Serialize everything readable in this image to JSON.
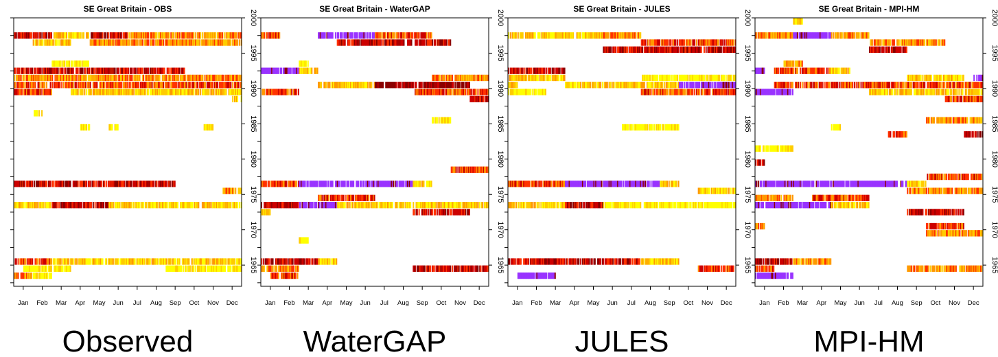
{
  "colors": {
    "level1": "#ffff00",
    "level2": "#ffcc00",
    "level3": "#ff9900",
    "level4": "#ff3300",
    "level5": "#cc0000",
    "level6": "#8b0000",
    "level7": "#9933ff"
  },
  "chart_data": [
    {
      "type": "heatmap",
      "title": "SE Great Britain  - OBS",
      "caption": "Observed",
      "xlabel": "",
      "ylabel": "",
      "x_ticks": [
        "Jan",
        "Feb",
        "Mar",
        "Apr",
        "May",
        "Jun",
        "Jul",
        "Aug",
        "Sep",
        "Oct",
        "Nov",
        "Dec"
      ],
      "y_ticks": [
        1965,
        1970,
        1975,
        1980,
        1985,
        1990,
        1995,
        2000
      ],
      "ylim": [
        1962,
        2000
      ],
      "series": [
        {
          "year": 1997,
          "segments": [
            [
              0,
              2,
              5
            ],
            [
              2,
              4,
              2
            ],
            [
              4,
              6,
              5
            ],
            [
              6,
              12,
              3
            ]
          ]
        },
        {
          "year": 1996,
          "segments": [
            [
              1,
              3,
              2
            ],
            [
              4,
              12,
              3
            ]
          ]
        },
        {
          "year": 1993,
          "segments": [
            [
              2,
              4,
              1
            ]
          ]
        },
        {
          "year": 1992,
          "segments": [
            [
              0,
              9,
              5
            ]
          ]
        },
        {
          "year": 1991,
          "segments": [
            [
              0,
              12,
              3
            ]
          ]
        },
        {
          "year": 1990,
          "segments": [
            [
              0,
              12,
              4
            ]
          ]
        },
        {
          "year": 1989,
          "segments": [
            [
              0,
              2,
              4
            ],
            [
              3,
              12,
              2
            ]
          ]
        },
        {
          "year": 1988,
          "segments": [
            [
              11.5,
              12,
              2
            ]
          ]
        },
        {
          "year": 1986,
          "segments": [
            [
              1,
              1.5,
              1
            ]
          ]
        },
        {
          "year": 1984,
          "segments": [
            [
              3.5,
              4,
              1
            ],
            [
              5,
              5.5,
              1
            ],
            [
              10,
              10.5,
              1
            ]
          ]
        },
        {
          "year": 1976,
          "segments": [
            [
              0,
              8.5,
              5
            ]
          ]
        },
        {
          "year": 1975,
          "segments": [
            [
              11,
              12,
              3
            ]
          ]
        },
        {
          "year": 1973,
          "segments": [
            [
              0,
              2,
              2
            ],
            [
              2,
              5,
              5
            ],
            [
              5,
              12,
              2
            ]
          ]
        },
        {
          "year": 1965,
          "segments": [
            [
              0,
              2,
              4
            ],
            [
              2,
              12,
              2
            ]
          ]
        },
        {
          "year": 1964,
          "segments": [
            [
              0.5,
              3,
              1
            ],
            [
              8,
              12,
              1
            ]
          ]
        },
        {
          "year": 1963,
          "segments": [
            [
              0,
              1,
              3
            ],
            [
              1,
              2,
              1
            ]
          ]
        }
      ]
    },
    {
      "type": "heatmap",
      "title": "SE Great Britain  - WaterGAP",
      "caption": "WaterGAP",
      "xlabel": "",
      "ylabel": "",
      "x_ticks": [
        "Jan",
        "Feb",
        "Mar",
        "Apr",
        "May",
        "Jun",
        "Jul",
        "Aug",
        "Sep",
        "Oct",
        "Nov",
        "Dec"
      ],
      "y_ticks": [
        1965,
        1970,
        1975,
        1980,
        1985,
        1990,
        1995,
        2000
      ],
      "ylim": [
        1962,
        2000
      ],
      "series": [
        {
          "year": 1997,
          "segments": [
            [
              0,
              1,
              4
            ],
            [
              3,
              6,
              7
            ],
            [
              6,
              9,
              4
            ]
          ]
        },
        {
          "year": 1996,
          "segments": [
            [
              4,
              10,
              5
            ]
          ]
        },
        {
          "year": 1993,
          "segments": [
            [
              2,
              2.5,
              1
            ]
          ]
        },
        {
          "year": 1992,
          "segments": [
            [
              0,
              2,
              7
            ],
            [
              2,
              3,
              2
            ]
          ]
        },
        {
          "year": 1991,
          "segments": [
            [
              9,
              12,
              3
            ]
          ]
        },
        {
          "year": 1990,
          "segments": [
            [
              3,
              6,
              2
            ],
            [
              6,
              11,
              6
            ]
          ]
        },
        {
          "year": 1989,
          "segments": [
            [
              0,
              2,
              4
            ],
            [
              8,
              12,
              4
            ]
          ]
        },
        {
          "year": 1988,
          "segments": [
            [
              11,
              12,
              5
            ]
          ]
        },
        {
          "year": 1985,
          "segments": [
            [
              9,
              10,
              1
            ]
          ]
        },
        {
          "year": 1978,
          "segments": [
            [
              10,
              12,
              4
            ]
          ]
        },
        {
          "year": 1976,
          "segments": [
            [
              0,
              2,
              4
            ],
            [
              2,
              8,
              7
            ],
            [
              8,
              9,
              2
            ]
          ]
        },
        {
          "year": 1974,
          "segments": [
            [
              3,
              6,
              4
            ]
          ]
        },
        {
          "year": 1973,
          "segments": [
            [
              0,
              2,
              5
            ],
            [
              2,
              4,
              7
            ],
            [
              4,
              12,
              2
            ]
          ]
        },
        {
          "year": 1972,
          "segments": [
            [
              0,
              0.5,
              2
            ],
            [
              8,
              11,
              5
            ]
          ]
        },
        {
          "year": 1968,
          "segments": [
            [
              2,
              2.5,
              1
            ]
          ]
        },
        {
          "year": 1965,
          "segments": [
            [
              0,
              3,
              5
            ],
            [
              3,
              4,
              2
            ]
          ]
        },
        {
          "year": 1964,
          "segments": [
            [
              0,
              2,
              3
            ],
            [
              8,
              12,
              5
            ]
          ]
        },
        {
          "year": 1963,
          "segments": [
            [
              0.5,
              2,
              4
            ]
          ]
        }
      ]
    },
    {
      "type": "heatmap",
      "title": "SE Great Britain  - JULES",
      "caption": "JULES",
      "xlabel": "",
      "ylabel": "",
      "x_ticks": [
        "Jan",
        "Feb",
        "Mar",
        "Apr",
        "May",
        "Jun",
        "Jul",
        "Aug",
        "Sep",
        "Oct",
        "Nov",
        "Dec"
      ],
      "y_ticks": [
        1965,
        1970,
        1975,
        1980,
        1985,
        1990,
        1995,
        2000
      ],
      "ylim": [
        1962,
        2000
      ],
      "series": [
        {
          "year": 1997,
          "segments": [
            [
              0,
              5,
              2
            ],
            [
              5,
              7,
              3
            ]
          ]
        },
        {
          "year": 1996,
          "segments": [
            [
              7,
              12,
              4
            ]
          ]
        },
        {
          "year": 1995,
          "segments": [
            [
              5,
              12,
              5
            ]
          ]
        },
        {
          "year": 1992,
          "segments": [
            [
              0,
              3,
              5
            ]
          ]
        },
        {
          "year": 1991,
          "segments": [
            [
              0,
              3,
              2
            ],
            [
              7,
              12,
              1
            ]
          ]
        },
        {
          "year": 1990,
          "segments": [
            [
              0,
              0.5,
              2
            ],
            [
              3,
              9,
              2
            ],
            [
              9,
              12,
              7
            ]
          ]
        },
        {
          "year": 1989,
          "segments": [
            [
              0,
              2,
              1
            ],
            [
              7,
              12,
              4
            ]
          ]
        },
        {
          "year": 1984,
          "segments": [
            [
              6,
              9,
              1
            ]
          ]
        },
        {
          "year": 1976,
          "segments": [
            [
              0,
              3,
              4
            ],
            [
              3,
              8,
              7
            ],
            [
              8,
              9,
              2
            ]
          ]
        },
        {
          "year": 1975,
          "segments": [
            [
              10,
              12,
              2
            ]
          ]
        },
        {
          "year": 1973,
          "segments": [
            [
              0,
              3,
              2
            ],
            [
              3,
              5,
              5
            ],
            [
              5,
              12,
              1
            ]
          ]
        },
        {
          "year": 1965,
          "segments": [
            [
              0,
              7,
              5
            ],
            [
              7,
              9,
              2
            ]
          ]
        },
        {
          "year": 1964,
          "segments": [
            [
              10,
              12,
              4
            ]
          ]
        },
        {
          "year": 1963,
          "segments": [
            [
              0.5,
              2.5,
              7
            ]
          ]
        }
      ]
    },
    {
      "type": "heatmap",
      "title": "SE Great Britain  - MPI-HM",
      "caption": "MPI-HM",
      "xlabel": "",
      "ylabel": "",
      "x_ticks": [
        "Jan",
        "Feb",
        "Mar",
        "Apr",
        "May",
        "Jun",
        "Jul",
        "Aug",
        "Sep",
        "Oct",
        "Nov",
        "Dec"
      ],
      "y_ticks": [
        1965,
        1970,
        1975,
        1980,
        1985,
        1990,
        1995,
        2000
      ],
      "ylim": [
        1962,
        2000
      ],
      "series": [
        {
          "year": 1999,
          "segments": [
            [
              2,
              2.5,
              2
            ]
          ]
        },
        {
          "year": 1997,
          "segments": [
            [
              0,
              2,
              3
            ],
            [
              2,
              4,
              7
            ],
            [
              4,
              6,
              3
            ]
          ]
        },
        {
          "year": 1996,
          "segments": [
            [
              6,
              10,
              3
            ]
          ]
        },
        {
          "year": 1995,
          "segments": [
            [
              6,
              8,
              5
            ]
          ]
        },
        {
          "year": 1993,
          "segments": [
            [
              1.5,
              2.5,
              3
            ]
          ]
        },
        {
          "year": 1992,
          "segments": [
            [
              0,
              0.5,
              7
            ],
            [
              1,
              4,
              4
            ],
            [
              4,
              5,
              2
            ]
          ]
        },
        {
          "year": 1991,
          "segments": [
            [
              8,
              11,
              2
            ],
            [
              11.5,
              12,
              7
            ]
          ]
        },
        {
          "year": 1990,
          "segments": [
            [
              1,
              12,
              4
            ]
          ]
        },
        {
          "year": 1989,
          "segments": [
            [
              0,
              2,
              7
            ],
            [
              6,
              12,
              2
            ]
          ]
        },
        {
          "year": 1988,
          "segments": [
            [
              10,
              12,
              4
            ]
          ]
        },
        {
          "year": 1985,
          "segments": [
            [
              9,
              12,
              3
            ]
          ]
        },
        {
          "year": 1984,
          "segments": [
            [
              4,
              4.5,
              1
            ]
          ]
        },
        {
          "year": 1983,
          "segments": [
            [
              7,
              8,
              4
            ],
            [
              11,
              12,
              5
            ]
          ]
        },
        {
          "year": 1981,
          "segments": [
            [
              0,
              2,
              1
            ]
          ]
        },
        {
          "year": 1979,
          "segments": [
            [
              0,
              0.5,
              5
            ]
          ]
        },
        {
          "year": 1977,
          "segments": [
            [
              9,
              12,
              4
            ]
          ]
        },
        {
          "year": 1976,
          "segments": [
            [
              0,
              8,
              7
            ],
            [
              8,
              9,
              2
            ]
          ]
        },
        {
          "year": 1975,
          "segments": [
            [
              8,
              12,
              3
            ]
          ]
        },
        {
          "year": 1974,
          "segments": [
            [
              0,
              2,
              3
            ],
            [
              3,
              6,
              4
            ]
          ]
        },
        {
          "year": 1973,
          "segments": [
            [
              0,
              4,
              7
            ],
            [
              4,
              6,
              2
            ]
          ]
        },
        {
          "year": 1972,
          "segments": [
            [
              8,
              11,
              5
            ]
          ]
        },
        {
          "year": 1970,
          "segments": [
            [
              0,
              0.5,
              3
            ],
            [
              9,
              11,
              4
            ]
          ]
        },
        {
          "year": 1969,
          "segments": [
            [
              9,
              12,
              3
            ]
          ]
        },
        {
          "year": 1965,
          "segments": [
            [
              0,
              2,
              5
            ],
            [
              2,
              4,
              3
            ]
          ]
        },
        {
          "year": 1964,
          "segments": [
            [
              0,
              1,
              4
            ],
            [
              8,
              12,
              3
            ]
          ]
        },
        {
          "year": 1963,
          "segments": [
            [
              0,
              2,
              7
            ]
          ]
        }
      ]
    }
  ]
}
